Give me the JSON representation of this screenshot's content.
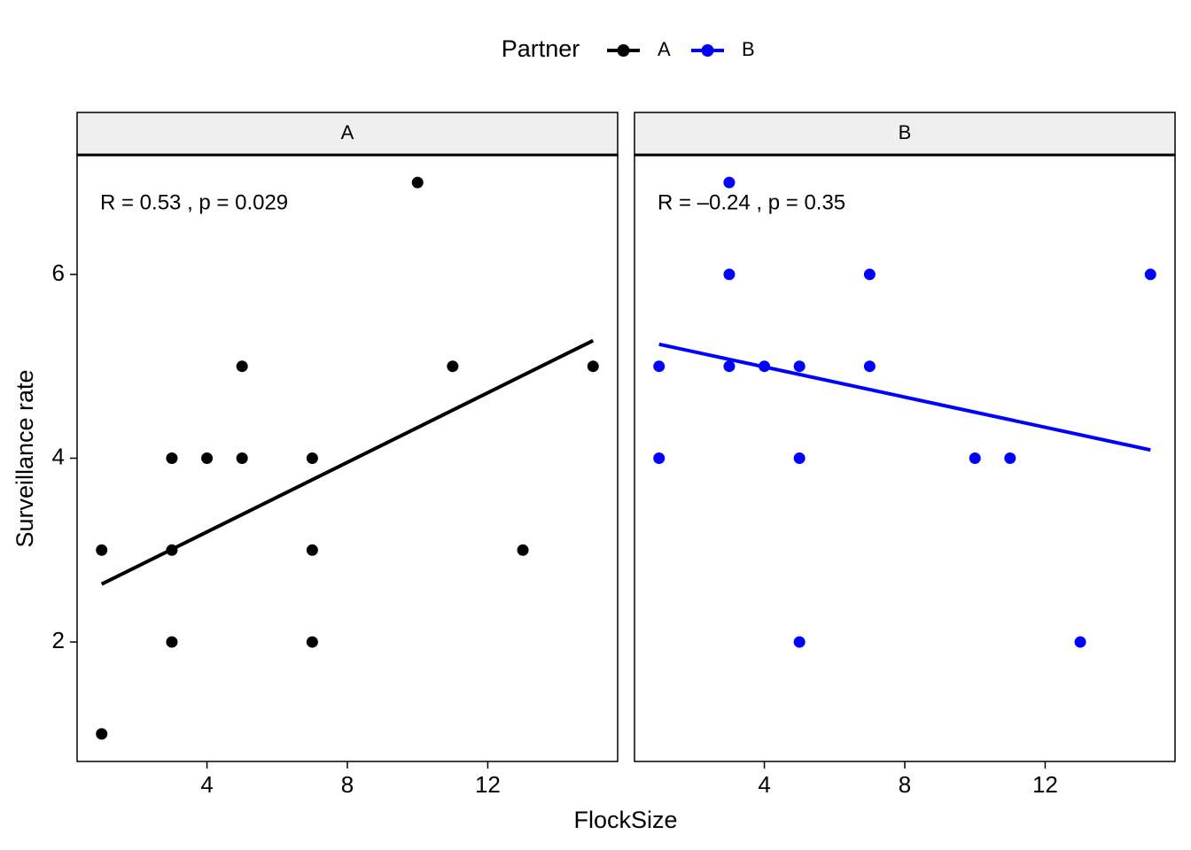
{
  "chart_data": {
    "type": "scatter",
    "xlabel": "FlockSize",
    "ylabel": "Surveillance rate",
    "legend_title": "Partner",
    "legend_position": "top",
    "xlim": [
      0.3,
      15.7
    ],
    "xticks": [
      4,
      8,
      12
    ],
    "ylim": [
      0.7,
      7.3
    ],
    "yticks": [
      2,
      4,
      6
    ],
    "series": [
      {
        "name": "A",
        "color": "#000000",
        "x": [
          1,
          1,
          3,
          3,
          3,
          4,
          5,
          5,
          7,
          7,
          7,
          10,
          11,
          13,
          15
        ],
        "values": [
          3,
          1,
          4,
          3,
          2,
          4,
          5,
          4,
          4,
          3,
          2,
          7,
          5,
          3,
          5
        ],
        "fit_x": [
          1,
          15
        ],
        "fit_values": [
          2.63,
          5.28
        ],
        "annotation": "R = 0.53 , p = 0.029"
      },
      {
        "name": "B",
        "color": "#0000ff",
        "x": [
          1,
          1,
          3,
          3,
          3,
          4,
          5,
          5,
          5,
          7,
          7,
          10,
          11,
          13,
          15
        ],
        "values": [
          5,
          4,
          7,
          6,
          5,
          5,
          5,
          4,
          2,
          6,
          5,
          4,
          4,
          2,
          6
        ],
        "fit_x": [
          1,
          15
        ],
        "fit_values": [
          5.24,
          4.09
        ],
        "annotation": "R = –0.24 , p = 0.35"
      }
    ]
  }
}
